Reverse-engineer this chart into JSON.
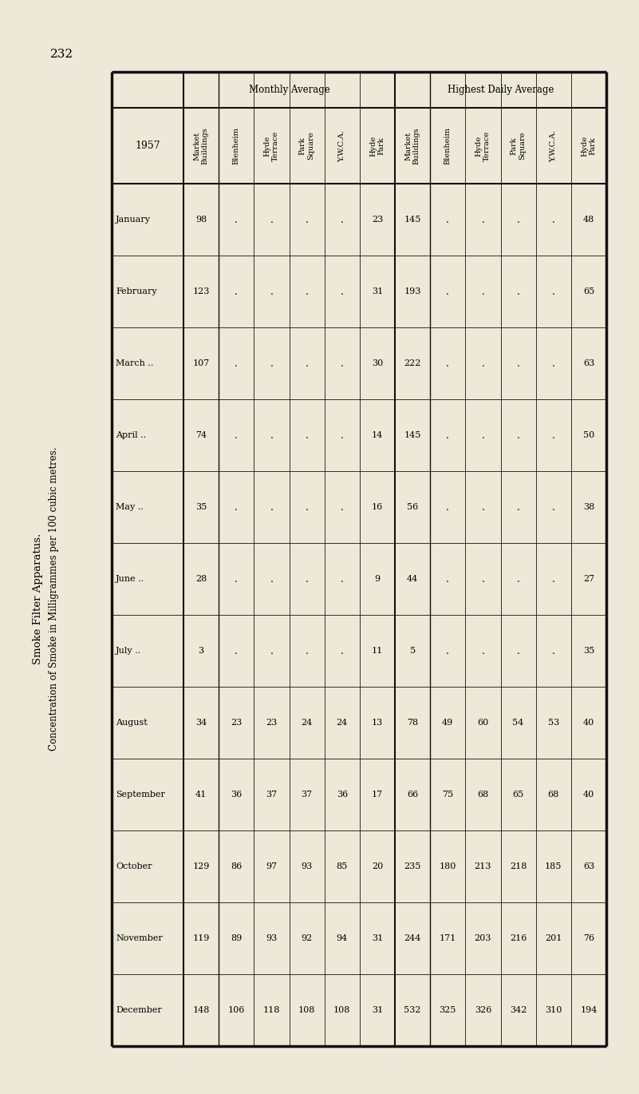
{
  "page_number": "232",
  "title_line1": "Smoke Filter Apparatus.",
  "title_line2": "Concentration of Smoke in Milligrammes per 100 cubic metres.",
  "year": "1957",
  "months": [
    "January",
    "February",
    "March ..",
    "April ..",
    "May ..",
    "June ..",
    "July ..",
    "August",
    "September",
    "October",
    "November",
    "December"
  ],
  "month_dots": [
    "..",
    "..",
    "",
    "",
    "",
    "",
    "",
    "",
    "..",
    "",
    "..",
    ".."
  ],
  "col_headers": [
    "Market\nBuildings",
    "Blenheim",
    "Hyde\nTerrace",
    "Park\nSquare",
    "Y.W.C.A.",
    "Hyde\nPark",
    "Market\nBuildings",
    "Blenheim",
    "Hyde\nTerrace",
    "Park\nSquare",
    "Y.W.C.A.",
    "Hyde\nPark"
  ],
  "monthly_market": [
    "98",
    "123",
    "107",
    "74",
    "35",
    "28",
    "3",
    "34",
    "41",
    "129",
    "119",
    "148"
  ],
  "monthly_blenheim": [
    ".",
    ".",
    ".",
    ".",
    ".",
    ".",
    ".",
    "23",
    "36",
    "86",
    "89",
    "106"
  ],
  "monthly_hyde_t": [
    ".",
    ".",
    ".",
    ".",
    ".",
    ".",
    ".",
    "23",
    "37",
    "97",
    "93",
    "118"
  ],
  "monthly_park_sq": [
    ".",
    ".",
    ".",
    ".",
    ".",
    ".",
    ".",
    "24",
    "37",
    "93",
    "92",
    "108"
  ],
  "monthly_ywca": [
    ".",
    ".",
    ".",
    ".",
    ".",
    ".",
    ".",
    "24",
    "36",
    "85",
    "94",
    "108"
  ],
  "monthly_hyde_p": [
    "23",
    "31",
    "30",
    "14",
    "16",
    "9",
    "11",
    "13",
    "17",
    "20",
    "31",
    "31"
  ],
  "highest_market": [
    "145",
    "193",
    "222",
    "145",
    "56",
    "44",
    "5",
    "78",
    "66",
    "235",
    "244",
    "532"
  ],
  "highest_blenheim": [
    ".",
    ".",
    ".",
    ".",
    ".",
    ".",
    ".",
    "49",
    "75",
    "180",
    "171",
    "325"
  ],
  "highest_hyde_t": [
    ".",
    ".",
    ".",
    ".",
    ".",
    ".",
    ".",
    "60",
    "68",
    "213",
    "203",
    "326"
  ],
  "highest_park_sq": [
    ".",
    ".",
    ".",
    ".",
    ".",
    ".",
    ".",
    "54",
    "65",
    "218",
    "216",
    "342"
  ],
  "highest_ywca": [
    ".",
    ".",
    ".",
    ".",
    ".",
    ".",
    ".",
    "53",
    "68",
    "185",
    "201",
    "310"
  ],
  "highest_hyde_p": [
    "48",
    "65",
    "63",
    "50",
    "38",
    "27",
    "35",
    "40",
    "40",
    "63",
    "76",
    "194"
  ],
  "bg_color": "#f0ece0",
  "paper_color": "#ede8d8"
}
